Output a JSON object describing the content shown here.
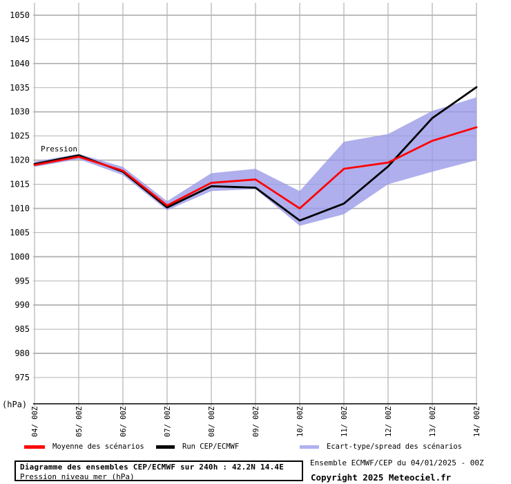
{
  "chart_data": {
    "type": "line",
    "title": "Diagramme des ensembles CEP/ECMWF sur 240h : 42.2N 14.4E",
    "subtitle": "Pression niveau mer (hPa)",
    "unit_label": "(hPa)",
    "inline_label": "Pression",
    "grid": true,
    "legend_position": "bottom",
    "x_tick_labels": [
      "04/ 00Z",
      "05/ 00Z",
      "06/ 00Z",
      "07/ 00Z",
      "08/ 00Z",
      "09/ 00Z",
      "10/ 00Z",
      "11/ 00Z",
      "12/ 00Z",
      "13/ 00Z",
      "14/ 00Z"
    ],
    "y_ticks": [
      975,
      980,
      985,
      990,
      995,
      1000,
      1005,
      1010,
      1015,
      1020,
      1025,
      1030,
      1035,
      1040,
      1045,
      1050
    ],
    "ylim": [
      970,
      1052
    ],
    "series": [
      {
        "name": "Moyenne des scénarios",
        "kind": "line",
        "color": "#ff0000",
        "values": [
          1019.0,
          1020.7,
          1017.8,
          1010.6,
          1015.3,
          1016.0,
          1010.0,
          1018.2,
          1019.5,
          1024.0,
          1026.8
        ]
      },
      {
        "name": "Run CEP/ECMWF",
        "kind": "line",
        "color": "#000000",
        "values": [
          1019.2,
          1021.0,
          1017.6,
          1010.2,
          1014.6,
          1014.3,
          1007.5,
          1011.0,
          1018.7,
          1028.7,
          1035.1
        ]
      },
      {
        "name": "Ecart-type/spread des scénarios",
        "kind": "band",
        "color": "#9898e8",
        "upper": [
          1019.7,
          1021.3,
          1018.6,
          1011.5,
          1017.3,
          1018.2,
          1013.6,
          1023.8,
          1025.4,
          1030.2,
          1033.0
        ],
        "lower": [
          1018.6,
          1020.2,
          1016.9,
          1009.6,
          1013.6,
          1014.0,
          1006.4,
          1008.8,
          1015.0,
          1017.6,
          1020.0
        ]
      }
    ]
  },
  "legend": {
    "mean_label": "Moyenne des scénarios",
    "mean_color": "#ff0000",
    "run_label": "Run CEP/ECMWF",
    "run_color": "#000000",
    "spread_label": "Ecart-type/spread des scénarios",
    "spread_swatch_color": "#b0b0f0"
  },
  "footer": {
    "title": "Diagramme des ensembles CEP/ECMWF sur 240h : 42.2N 14.4E",
    "subtitle": "Pression niveau mer (hPa)",
    "run_info": "Ensemble ECMWF/CEP du 04/01/2025 - 00Z",
    "copyright": "Copyright 2025 Meteociel.fr"
  }
}
